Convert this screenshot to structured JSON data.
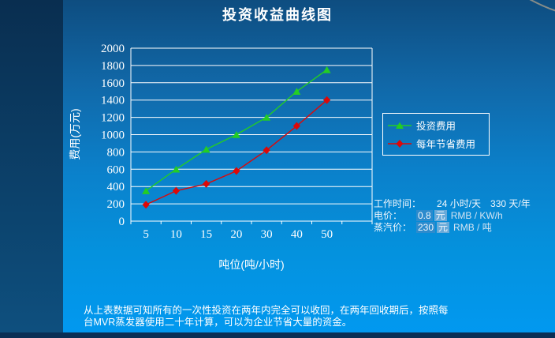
{
  "slide": {
    "title": "投资收益曲线图",
    "footer_text": "从上表数据可知所有的一次性投资在两年内完全可以收回，在两年回收期后，按照每台MVR蒸发器使用二十年计算，可以为企业节省大量的资金。"
  },
  "info_panel": {
    "rows": [
      {
        "label": "工作时间：",
        "value": "24 小时/天　330 天/年"
      },
      {
        "label": "电价：",
        "num": "0.8",
        "unit": "元",
        "suffix": "RMB / KW/h"
      },
      {
        "label": "蒸汽价：",
        "num": "230",
        "unit": "元",
        "suffix": "RMB / 吨"
      }
    ]
  },
  "chart_data": {
    "type": "line",
    "title": "投资收益曲线图",
    "categories": [
      5,
      10,
      15,
      20,
      30,
      40,
      50
    ],
    "series": [
      {
        "name": "投资费用",
        "color": "#24cd24",
        "marker": "triangle",
        "values": [
          350,
          600,
          830,
          1000,
          1200,
          1500,
          1750
        ]
      },
      {
        "name": "每年节省费用",
        "color": "#dd0808",
        "marker": "diamond",
        "values": [
          190,
          350,
          430,
          580,
          820,
          1100,
          1400
        ]
      }
    ],
    "xlabel": "吨位(吨/小时)",
    "ylabel": "费用(万元)",
    "ylim": [
      0,
      2000
    ],
    "ytick_step": 200,
    "x_slots": 8,
    "grid": true,
    "legend_position": "right"
  }
}
